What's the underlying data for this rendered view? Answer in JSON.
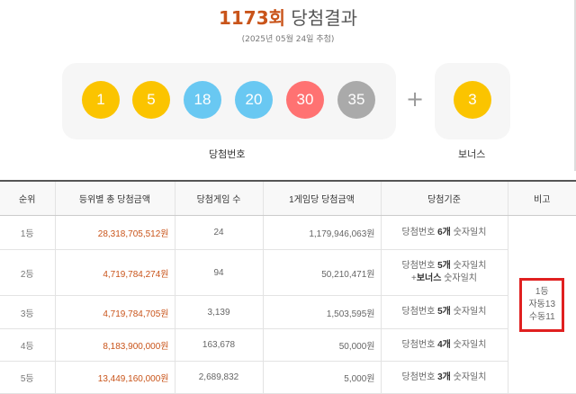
{
  "header": {
    "round": "1173회",
    "title_rest": " 당첨결과",
    "date": "(2025년 05월 24일 추첨)"
  },
  "numbers": {
    "main": [
      {
        "value": "1",
        "color": "#fbc400"
      },
      {
        "value": "5",
        "color": "#fbc400"
      },
      {
        "value": "18",
        "color": "#69c8f2"
      },
      {
        "value": "20",
        "color": "#69c8f2"
      },
      {
        "value": "30",
        "color": "#ff7272"
      },
      {
        "value": "35",
        "color": "#aaaaaa"
      }
    ],
    "plus": "+",
    "bonus": {
      "value": "3",
      "color": "#fbc400"
    },
    "main_label": "당첨번호",
    "bonus_label": "보너스"
  },
  "table": {
    "headers": [
      "순위",
      "등위별 총 당첨금액",
      "당첨게임 수",
      "1게임당 당첨금액",
      "당첨기준",
      "비고"
    ],
    "rows": [
      {
        "rank": "1등",
        "total": "28,318,705,512원",
        "games": "24",
        "per_game": "1,179,946,063원",
        "crit_pre": "당첨번호 ",
        "crit_bold": "6개",
        "crit_post": " 숫자일치",
        "crit2_pre": "",
        "crit2_bold": "",
        "crit2_post": ""
      },
      {
        "rank": "2등",
        "total": "4,719,784,274원",
        "games": "94",
        "per_game": "50,210,471원",
        "crit_pre": "당첨번호 ",
        "crit_bold": "5개",
        "crit_post": " 숫자일치",
        "crit2_pre": "+",
        "crit2_bold": "보너스",
        "crit2_post": " 숫자일치"
      },
      {
        "rank": "3등",
        "total": "4,719,784,705원",
        "games": "3,139",
        "per_game": "1,503,595원",
        "crit_pre": "당첨번호 ",
        "crit_bold": "5개",
        "crit_post": " 숫자일치",
        "crit2_pre": "",
        "crit2_bold": "",
        "crit2_post": ""
      },
      {
        "rank": "4등",
        "total": "8,183,900,000원",
        "games": "163,678",
        "per_game": "50,000원",
        "crit_pre": "당첨번호 ",
        "crit_bold": "4개",
        "crit_post": " 숫자일치",
        "crit2_pre": "",
        "crit2_bold": "",
        "crit2_post": ""
      },
      {
        "rank": "5등",
        "total": "13,449,160,000원",
        "games": "2,689,832",
        "per_game": "5,000원",
        "crit_pre": "당첨번호 ",
        "crit_bold": "3개",
        "crit_post": " 숫자일치",
        "crit2_pre": "",
        "crit2_bold": "",
        "crit2_post": ""
      }
    ],
    "note": {
      "line1": "1등",
      "line2": "자동13",
      "line3": "수동11",
      "highlight_color": "#e02020"
    }
  }
}
